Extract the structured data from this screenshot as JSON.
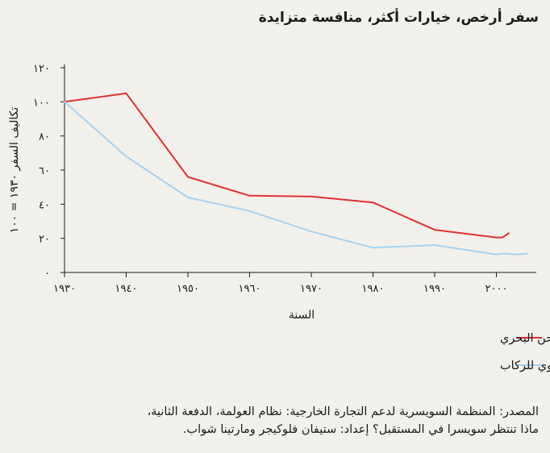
{
  "title": "سفر أرخص، خيارات أكثر، منافسة متزايدة",
  "source_line1": "المصدر: المنظمة السويسرية لدعم التجارة الخارجية: نظام العولمة، الدفعة الثانية،",
  "source_line2": "ماذا تنتظر سويسرا في المستقبل؟ إعداد: ستيفان فلوكيجر ومارتينا شواب.",
  "chart_data": {
    "type": "line",
    "xlabel": "السنة",
    "ylabel": "تكاليف السفر ١٩٣٠ = ١٠٠",
    "xlim": [
      1930,
      2008
    ],
    "ylim": [
      0,
      120
    ],
    "xticks": [
      1930,
      1940,
      1950,
      1960,
      1970,
      1980,
      1990,
      2000
    ],
    "xtick_labels": [
      "١٩٣٠",
      "١٩٤٠",
      "١٩٥٠",
      "١٩٦٠",
      "١٩٧٠",
      "١٩٨٠",
      "١٩٩٠",
      "٢٠٠٠"
    ],
    "yticks": [
      0,
      20,
      40,
      60,
      80,
      100,
      120
    ],
    "ytick_labels": [
      "٠",
      "٢٠",
      "٤٠",
      "٦٠",
      "٨٠",
      "١٠٠",
      "١٢٠"
    ],
    "grid": false,
    "legend_position": "bottom-right",
    "series": [
      {
        "name": "الشحن البحري",
        "color": "#e03232",
        "x": [
          1930,
          1940,
          1950,
          1960,
          1970,
          1980,
          1990,
          2000,
          2001,
          2002
        ],
        "y": [
          100,
          105,
          56,
          45,
          44.5,
          41,
          25,
          20.5,
          20.5,
          23
        ]
      },
      {
        "name": "السفر الجوي للركاب",
        "color": "#a8d2f0",
        "x": [
          1930,
          1940,
          1950,
          1960,
          1970,
          1980,
          1990,
          2000,
          2001,
          2002,
          2003,
          2005
        ],
        "y": [
          100,
          68,
          44,
          36,
          24,
          14.5,
          16,
          10.5,
          11,
          11,
          10.5,
          11
        ]
      }
    ]
  }
}
